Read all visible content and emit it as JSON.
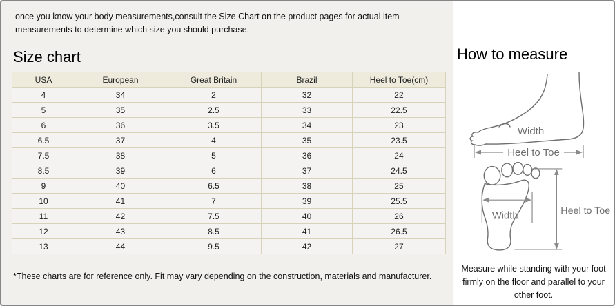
{
  "intro": {
    "text": "once you know your body measurements,consult the Size Chart on the product pages for actual item measurements to determine which size you should purchase."
  },
  "size_chart": {
    "title": "Size chart",
    "table": {
      "headers": [
        "USA",
        "European",
        "Great Britain",
        "Brazil",
        "Heel to Toe(cm)"
      ],
      "rows": [
        [
          "4",
          "34",
          "2",
          "32",
          "22"
        ],
        [
          "5",
          "35",
          "2.5",
          "33",
          "22.5"
        ],
        [
          "6",
          "36",
          "3.5",
          "34",
          "23"
        ],
        [
          "6.5",
          "37",
          "4",
          "35",
          "23.5"
        ],
        [
          "7.5",
          "38",
          "5",
          "36",
          "24"
        ],
        [
          "8.5",
          "39",
          "6",
          "37",
          "24.5"
        ],
        [
          "9",
          "40",
          "6.5",
          "38",
          "25"
        ],
        [
          "10",
          "41",
          "7",
          "39",
          "25.5"
        ],
        [
          "11",
          "42",
          "7.5",
          "40",
          "26"
        ],
        [
          "12",
          "43",
          "8.5",
          "41",
          "26.5"
        ],
        [
          "13",
          "44",
          "9.5",
          "42",
          "27"
        ]
      ]
    },
    "footnote": "*These charts are for reference only. Fit may vary depending on the construction, materials and manufacturer."
  },
  "how_to_measure": {
    "title": "How to measure",
    "side_view": {
      "width_label": "Width",
      "length_label": "Heel to Toe"
    },
    "sole_view": {
      "width_label": "Width",
      "length_label": "Heel to Toe"
    },
    "note": "Measure while standing with your foot firmly on the floor and parallel to your other foot."
  },
  "colors": {
    "page_bg": "#f1f0ed",
    "panel_bg": "#ffffff",
    "outer_border": "#868686",
    "table_header_bg": "#eeebdc",
    "table_cell_bg": "#f4f3f1",
    "table_border": "#d6d3b9",
    "illustration_stroke": "#6e6e6e"
  }
}
